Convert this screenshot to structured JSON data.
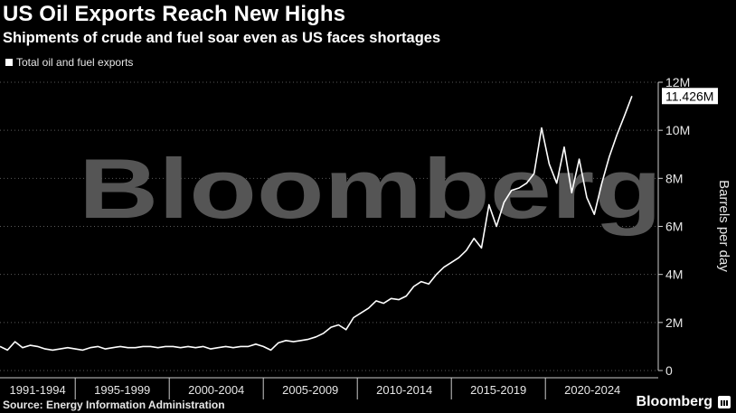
{
  "header": {
    "title": "US Oil Exports Reach New Highs",
    "subtitle": "Shipments of crude and fuel soar even as US faces shortages"
  },
  "footer": {
    "source": "Source: Energy Information Administration",
    "brand": "Bloomberg"
  },
  "watermark": "Bloomberg",
  "colors": {
    "background": "#000000",
    "line": "#ffffff",
    "grid": "#5a5a5a",
    "watermark": "#555555"
  },
  "chart_data": {
    "type": "line",
    "title": "US Oil Exports Reach New Highs",
    "subtitle": "Shipments of crude and fuel soar even as US faces shortages",
    "ylabel": "Barrels per day",
    "ylim": [
      0,
      12000000
    ],
    "xlim": [
      1991,
      2026
    ],
    "y_ticks": [
      {
        "value": 0,
        "label": "0"
      },
      {
        "value": 2000000,
        "label": "2M"
      },
      {
        "value": 4000000,
        "label": "4M"
      },
      {
        "value": 6000000,
        "label": "6M"
      },
      {
        "value": 8000000,
        "label": "8M"
      },
      {
        "value": 10000000,
        "label": "10M"
      },
      {
        "value": 12000000,
        "label": "12M"
      }
    ],
    "x_ticks": [
      {
        "label": "1991-1994",
        "start": 1991,
        "end": 1995
      },
      {
        "label": "1995-1999",
        "start": 1995,
        "end": 2000
      },
      {
        "label": "2000-2004",
        "start": 2000,
        "end": 2005
      },
      {
        "label": "2005-2009",
        "start": 2005,
        "end": 2010
      },
      {
        "label": "2010-2014",
        "start": 2010,
        "end": 2015
      },
      {
        "label": "2015-2019",
        "start": 2015,
        "end": 2020
      },
      {
        "label": "2020-2024",
        "start": 2020,
        "end": 2025
      }
    ],
    "grid": true,
    "legend": "top-left",
    "last_value_label": "11.426M",
    "series": [
      {
        "name": "Total oil and fuel exports",
        "x": [
          1991.0,
          1991.4,
          1991.8,
          1992.2,
          1992.6,
          1993.0,
          1993.4,
          1993.8,
          1994.2,
          1994.6,
          1995.0,
          1995.4,
          1995.8,
          1996.2,
          1996.6,
          1997.0,
          1997.4,
          1997.8,
          1998.2,
          1998.6,
          1999.0,
          1999.4,
          1999.8,
          2000.2,
          2000.6,
          2001.0,
          2001.4,
          2001.8,
          2002.2,
          2002.6,
          2003.0,
          2003.4,
          2003.8,
          2004.2,
          2004.6,
          2005.0,
          2005.4,
          2005.8,
          2006.2,
          2006.6,
          2007.0,
          2007.4,
          2007.8,
          2008.2,
          2008.6,
          2009.0,
          2009.4,
          2009.8,
          2010.2,
          2010.6,
          2011.0,
          2011.4,
          2011.8,
          2012.2,
          2012.6,
          2013.0,
          2013.4,
          2013.8,
          2014.2,
          2014.6,
          2015.0,
          2015.4,
          2015.8,
          2016.2,
          2016.6,
          2017.0,
          2017.4,
          2017.8,
          2018.2,
          2018.6,
          2019.0,
          2019.4,
          2019.8,
          2020.2,
          2020.6,
          2021.0,
          2021.4,
          2021.8,
          2022.2,
          2022.6,
          2023.0,
          2023.4,
          2023.8,
          2024.2,
          2024.6
        ],
        "values": [
          1000000,
          850000,
          1200000,
          950000,
          1050000,
          1000000,
          900000,
          850000,
          900000,
          950000,
          900000,
          850000,
          950000,
          1000000,
          900000,
          950000,
          1000000,
          950000,
          950000,
          1000000,
          1000000,
          950000,
          1000000,
          1000000,
          950000,
          1000000,
          950000,
          1000000,
          900000,
          950000,
          1000000,
          950000,
          1000000,
          1000000,
          1100000,
          1000000,
          850000,
          1150000,
          1250000,
          1200000,
          1250000,
          1300000,
          1400000,
          1550000,
          1800000,
          1900000,
          1700000,
          2200000,
          2400000,
          2600000,
          2900000,
          2800000,
          3000000,
          2950000,
          3100000,
          3500000,
          3700000,
          3600000,
          4000000,
          4300000,
          4500000,
          4700000,
          5000000,
          5500000,
          5100000,
          6900000,
          6000000,
          7000000,
          7500000,
          7600000,
          7800000,
          8200000,
          10100000,
          8600000,
          7800000,
          9300000,
          7400000,
          8800000,
          7200000,
          6500000,
          7800000,
          8900000,
          9800000,
          10600000,
          11426000
        ]
      }
    ]
  }
}
